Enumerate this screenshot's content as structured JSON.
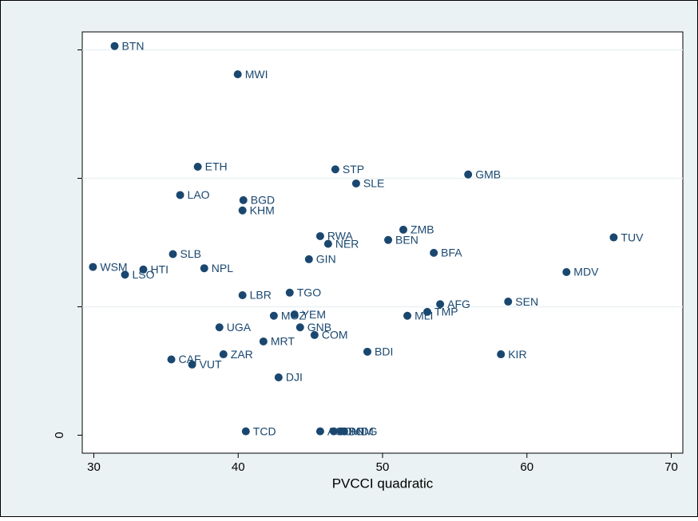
{
  "chart_data": {
    "type": "scatter",
    "x_label": "PVCCI quadratic",
    "xlim": [
      29.2,
      70.8
    ],
    "xticks": [
      30,
      40,
      50,
      60,
      70
    ],
    "ylim": [
      -0.14,
      3.14
    ],
    "yticks": [
      0
    ],
    "ygrid": [
      1,
      2,
      3
    ],
    "color": "#1a476f",
    "labels": [
      "BTN",
      "MWI",
      "ETH",
      "STP",
      "GMB",
      "SLE",
      "LAO",
      "BGD",
      "KHM",
      "ZMB",
      "RWA",
      "BEN",
      "TUV",
      "NER",
      "BFA",
      "SLB",
      "GIN",
      "WSM",
      "HTI",
      "NPL",
      "LSO",
      "MDV",
      "TGO",
      "LBR",
      "SEN",
      "AFG",
      "TMP",
      "MOZ",
      "YEM",
      "MLI",
      "UGA",
      "GNB",
      "COM",
      "MRT",
      "BDI",
      "KIR",
      "ZAR",
      "CAF",
      "VUT",
      "DJI",
      "TCD",
      "AGO",
      "SDN",
      "SOM",
      "MDG"
    ],
    "x": [
      31.44,
      39.97,
      37.2,
      46.73,
      55.93,
      48.17,
      35.98,
      40.36,
      40.3,
      51.44,
      45.68,
      50.39,
      66.01,
      46.23,
      53.55,
      35.48,
      44.9,
      29.94,
      33.43,
      37.65,
      32.16,
      62.74,
      43.57,
      40.3,
      58.7,
      53.99,
      53.1,
      42.47,
      43.9,
      51.72,
      38.7,
      44.29,
      45.29,
      41.75,
      48.95,
      58.2,
      38.98,
      35.37,
      36.81,
      42.8,
      40.53,
      45.68,
      46.62,
      47.12,
      47.34
    ],
    "y": [
      3.03,
      2.81,
      2.09,
      2.07,
      2.03,
      1.96,
      1.87,
      1.83,
      1.75,
      1.6,
      1.55,
      1.52,
      1.54,
      1.49,
      1.42,
      1.41,
      1.37,
      1.31,
      1.29,
      1.3,
      1.25,
      1.27,
      1.11,
      1.09,
      1.04,
      1.02,
      0.96,
      0.93,
      0.94,
      0.93,
      0.84,
      0.84,
      0.78,
      0.73,
      0.65,
      0.63,
      0.63,
      0.59,
      0.55,
      0.45,
      0.03,
      0.03,
      0.03,
      0.03,
      0.03
    ]
  }
}
